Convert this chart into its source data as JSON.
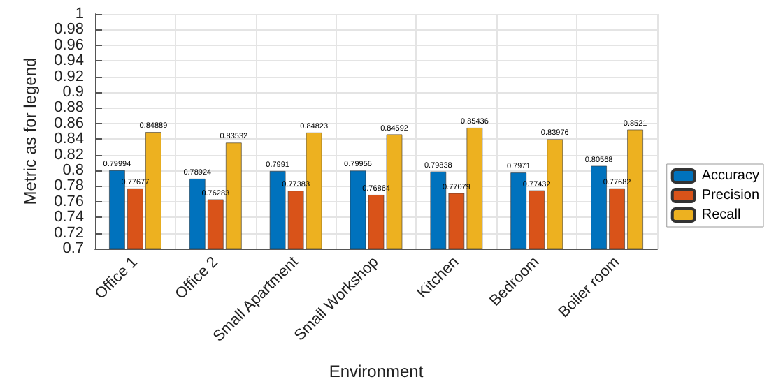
{
  "chart_data": {
    "type": "bar",
    "xlabel": "Environment",
    "ylabel": "Metric as for legend",
    "categories": [
      "Office 1",
      "Office 2",
      "Small Apartment",
      "Small Workshop",
      "Kitchen",
      "Bedroom",
      "Boiler room"
    ],
    "series": [
      {
        "name": "Accuracy",
        "color": "#0072bd",
        "values": [
          0.79994,
          0.78924,
          0.7991,
          0.79956,
          0.79838,
          0.7971,
          0.80568
        ]
      },
      {
        "name": "Precision",
        "color": "#d95319",
        "values": [
          0.77677,
          0.76283,
          0.77383,
          0.76864,
          0.77079,
          0.77432,
          0.77682
        ]
      },
      {
        "name": "Recall",
        "color": "#edb120",
        "values": [
          0.84889,
          0.83532,
          0.84823,
          0.84592,
          0.85436,
          0.83976,
          0.8521
        ]
      }
    ],
    "ylim": [
      0.7,
      1
    ],
    "yticks": [
      0.7,
      0.72,
      0.74,
      0.76,
      0.78,
      0.8,
      0.82,
      0.84,
      0.86,
      0.88,
      0.9,
      0.92,
      0.94,
      0.96,
      0.98,
      1
    ],
    "grid": true,
    "legend": "right",
    "data_labels": true
  }
}
